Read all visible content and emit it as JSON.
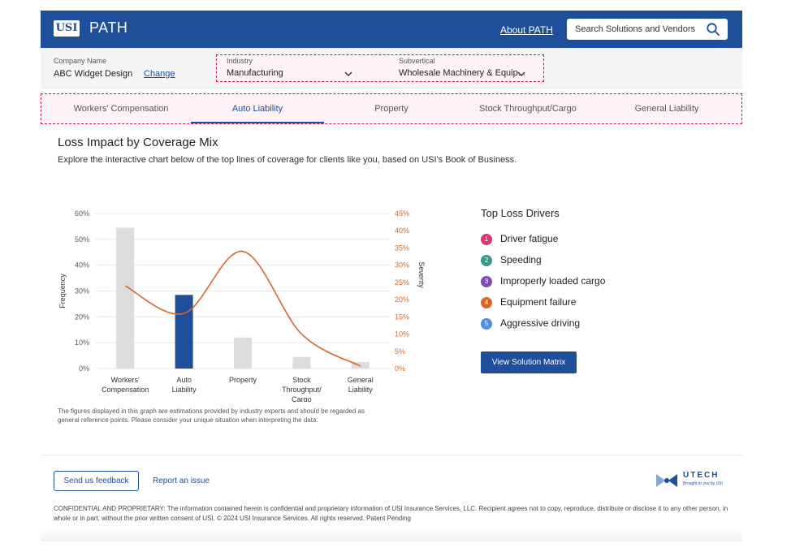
{
  "header": {
    "logo_text": "USI",
    "app_title": "PATH",
    "about_link": "About PATH",
    "search_placeholder": "Search Solutions and Vendors",
    "search_icon": "search-icon"
  },
  "company": {
    "name_label": "Company Name",
    "name_value": "ABC Widget Design",
    "change_link": "Change",
    "industry_label": "Industry",
    "industry_value": "Manufacturing",
    "subvertical_label": "Subvertical",
    "subvertical_value": "Wholesale Machinery & Equip...",
    "chevron_icon": "chevron-down-icon"
  },
  "tabs": [
    {
      "label": "Workers' Compensation",
      "active": false
    },
    {
      "label": "Auto Liability",
      "active": true
    },
    {
      "label": "Property",
      "active": false
    },
    {
      "label": "Stock Throughput/Cargo",
      "active": false
    },
    {
      "label": "General Liability",
      "active": false
    }
  ],
  "main": {
    "title": "Loss Impact by Coverage Mix",
    "subtitle": "Explore the interactive chart below of the top lines of coverage for clients like you, based on USI's Book of Business.",
    "note": "The figures displayed in this graph are estimations provided by industry experts and should be regarded as general reference points. Please consider your unique situation when interpreting the data."
  },
  "chart_data": {
    "type": "bar",
    "categories": [
      [
        "Workers'",
        "Compensation"
      ],
      [
        "Auto",
        "Liability"
      ],
      [
        "Property"
      ],
      [
        "Stock",
        "Throughput/",
        "Cargo"
      ],
      [
        "General",
        "Liability"
      ]
    ],
    "series": [
      {
        "name": "Frequency",
        "values": [
          54.5,
          28.5,
          12,
          4.5,
          2.5
        ],
        "axis": "left",
        "kind": "bar"
      },
      {
        "name": "Severity",
        "values": [
          24,
          16,
          34,
          10,
          0.7
        ],
        "axis": "right",
        "kind": "line"
      }
    ],
    "highlight_index": 1,
    "xlabel": "",
    "ylabel": "Frequency",
    "y2label": "Severity",
    "ylim": [
      0,
      60
    ],
    "y2lim": [
      0,
      45
    ],
    "yticks": [
      "0%",
      "10%",
      "20%",
      "30%",
      "40%",
      "50%",
      "60%"
    ],
    "y2ticks": [
      "0%",
      "5%",
      "10%",
      "15%",
      "20%",
      "25%",
      "30%",
      "35%",
      "40%",
      "45%"
    ],
    "grid": true,
    "colors": {
      "bar": "#dcdcdc",
      "bar_highlight": "#1f4e9a",
      "line": "#d4682a",
      "grid": "#e8e8e8"
    }
  },
  "drivers": {
    "title": "Top Loss Drivers",
    "items": [
      {
        "num": "1",
        "label": "Driver fatigue",
        "color": "#d63a6a"
      },
      {
        "num": "2",
        "label": "Speeding",
        "color": "#3a9a88"
      },
      {
        "num": "3",
        "label": "Improperly loaded cargo",
        "color": "#7c4fb8"
      },
      {
        "num": "4",
        "label": "Equipment failure",
        "color": "#d4682a"
      },
      {
        "num": "5",
        "label": "Aggressive driving",
        "color": "#4a90e2"
      }
    ],
    "button_label": "View Solution Matrix"
  },
  "footer": {
    "feedback_label": "Send us feedback",
    "report_label": "Report an issue",
    "utech_name": "UTECH",
    "utech_tag": "Brought to you by USI",
    "legal": "CONFIDENTIAL AND PROPRIETARY: The information contained herein is confidential and proprietary information of USI Insurance Services, LLC. Recipient agrees not to copy, reproduce, distribute or disclose it to any other person, in whole or in part, without the prior written consent of USI.   © 2024 USI Insurance Services. All rights reserved. Patent Pending"
  }
}
